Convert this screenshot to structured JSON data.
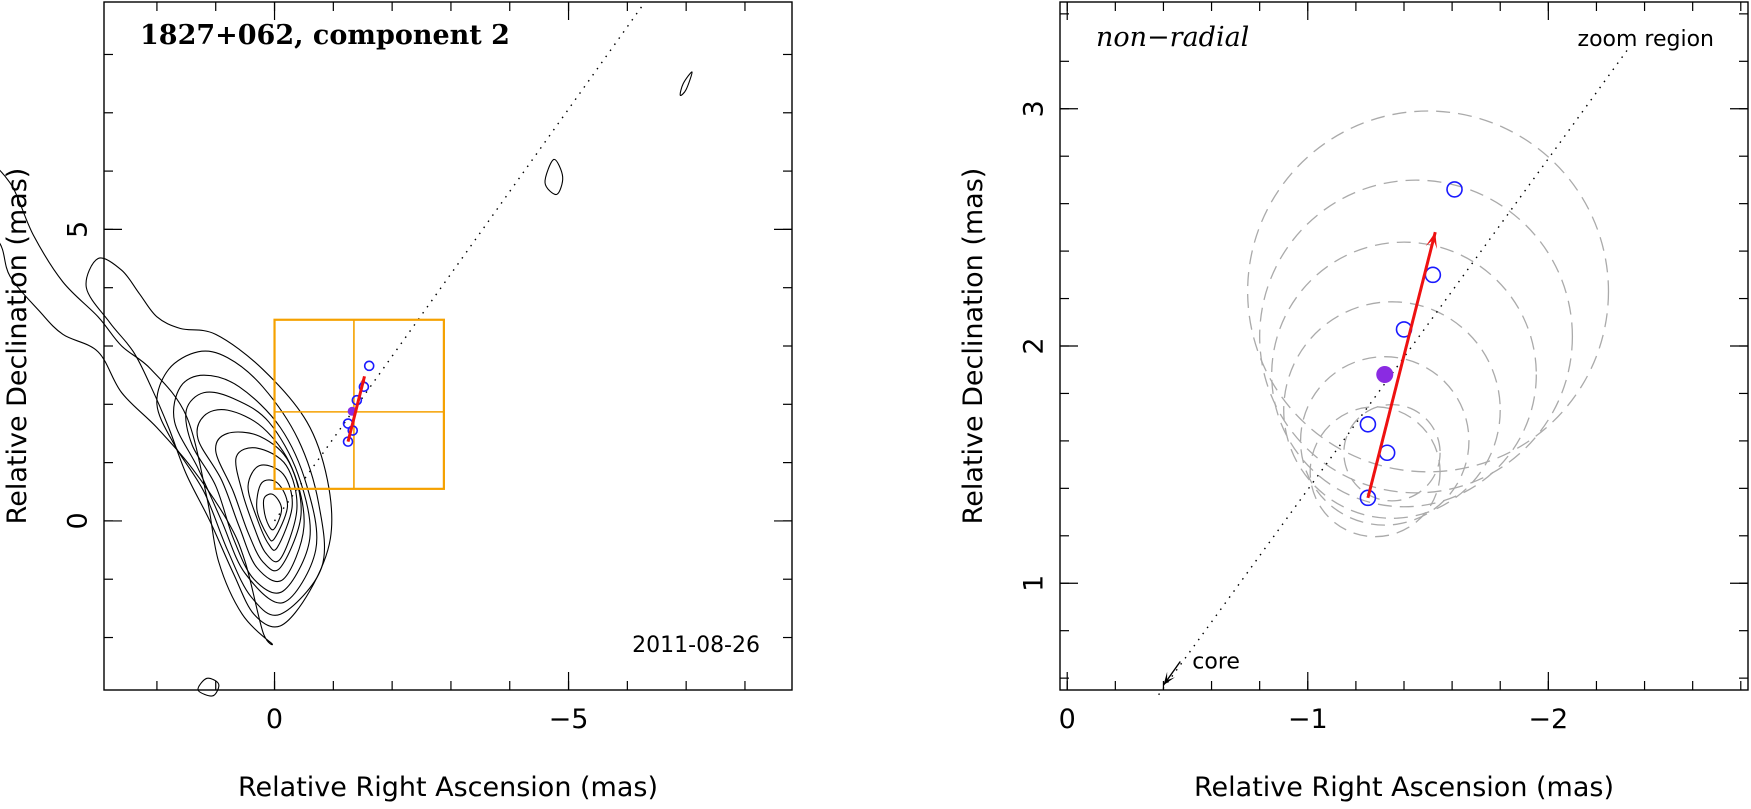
{
  "chart_data": [
    {
      "type": "scatter",
      "title": "1827+062, component 2",
      "date_label": "2011-08-26",
      "xlabel": "Relative Right Ascension (mas)",
      "ylabel": "Relative Declination (mas)",
      "xlim": [
        2.9,
        -8.8
      ],
      "ylim": [
        -2.9,
        8.9
      ],
      "x_ticks": [
        {
          "v": 0,
          "label": "0"
        },
        {
          "v": -5,
          "label": "−5"
        }
      ],
      "y_ticks": [
        {
          "v": 0,
          "label": "0"
        },
        {
          "v": 5,
          "label": "5"
        }
      ],
      "x_minor_step": 1,
      "y_minor_step": 1,
      "contours": [
        [
          [
            0.05,
            -2.1
          ],
          [
            0.55,
            -1.6
          ],
          [
            0.95,
            -0.7
          ],
          [
            1.15,
            0.4
          ],
          [
            1.5,
            1.8
          ],
          [
            2.1,
            2.6
          ],
          [
            2.6,
            3.0
          ],
          [
            3.0,
            3.5
          ],
          [
            3.6,
            4.1
          ],
          [
            4.1,
            4.9
          ],
          [
            4.5,
            5.8
          ],
          [
            5.0,
            6.2
          ],
          [
            5.4,
            5.7
          ],
          [
            5.3,
            5.2
          ],
          [
            4.7,
            4.8
          ],
          [
            4.5,
            4.2
          ],
          [
            4.0,
            3.6
          ],
          [
            3.6,
            3.2
          ],
          [
            3.0,
            2.9
          ],
          [
            2.6,
            2.2
          ],
          [
            2.0,
            1.6
          ],
          [
            1.4,
            0.9
          ],
          [
            0.8,
            0.0
          ],
          [
            0.5,
            -0.7
          ],
          [
            0.2,
            -1.9
          ]
        ],
        [
          [
            -0.1,
            -1.8
          ],
          [
            -0.6,
            -1.2
          ],
          [
            -0.95,
            -0.3
          ],
          [
            -0.9,
            0.7
          ],
          [
            -0.55,
            1.7
          ],
          [
            0.2,
            2.6
          ],
          [
            1.0,
            3.2
          ],
          [
            1.6,
            3.3
          ],
          [
            2.0,
            3.5
          ],
          [
            2.3,
            3.9
          ],
          [
            2.6,
            4.3
          ],
          [
            3.0,
            4.5
          ],
          [
            3.2,
            4.0
          ],
          [
            2.8,
            3.4
          ],
          [
            2.4,
            2.9
          ],
          [
            2.1,
            2.3
          ],
          [
            1.8,
            1.6
          ],
          [
            1.5,
            0.8
          ],
          [
            1.1,
            0.0
          ],
          [
            0.7,
            -0.9
          ],
          [
            0.35,
            -1.6
          ]
        ],
        [
          [
            -0.1,
            -1.6
          ],
          [
            -0.8,
            -0.8
          ],
          [
            -0.75,
            0.3
          ],
          [
            -0.4,
            1.4
          ],
          [
            0.2,
            2.3
          ],
          [
            0.8,
            2.8
          ],
          [
            1.3,
            2.9
          ],
          [
            1.8,
            2.6
          ],
          [
            2.0,
            2.0
          ],
          [
            1.7,
            1.3
          ],
          [
            1.2,
            0.5
          ],
          [
            0.8,
            -0.5
          ],
          [
            0.4,
            -1.3
          ]
        ],
        [
          [
            -0.15,
            -1.4
          ],
          [
            -0.7,
            -0.5
          ],
          [
            -0.55,
            0.6
          ],
          [
            -0.1,
            1.6
          ],
          [
            0.6,
            2.3
          ],
          [
            1.2,
            2.5
          ],
          [
            1.6,
            2.3
          ],
          [
            1.7,
            1.7
          ],
          [
            1.3,
            0.9
          ],
          [
            0.9,
            0.0
          ],
          [
            0.5,
            -0.9
          ]
        ],
        [
          [
            -0.15,
            -1.2
          ],
          [
            -0.6,
            -0.3
          ],
          [
            -0.4,
            0.8
          ],
          [
            0.1,
            1.7
          ],
          [
            0.7,
            2.1
          ],
          [
            1.2,
            2.2
          ],
          [
            1.5,
            1.9
          ],
          [
            1.4,
            1.3
          ],
          [
            1.0,
            0.6
          ],
          [
            0.7,
            -0.3
          ],
          [
            0.35,
            -1.0
          ]
        ],
        [
          [
            -0.15,
            -1.0
          ],
          [
            -0.5,
            -0.1
          ],
          [
            -0.3,
            0.9
          ],
          [
            0.2,
            1.6
          ],
          [
            0.8,
            1.9
          ],
          [
            1.2,
            1.8
          ],
          [
            1.3,
            1.4
          ],
          [
            0.9,
            0.7
          ],
          [
            0.6,
            -0.1
          ],
          [
            0.3,
            -0.8
          ]
        ],
        [
          [
            -0.1,
            -0.8
          ],
          [
            -0.45,
            0.1
          ],
          [
            -0.25,
            1.0
          ],
          [
            0.25,
            1.45
          ],
          [
            0.8,
            1.5
          ],
          [
            1.0,
            1.2
          ],
          [
            0.7,
            0.5
          ],
          [
            0.45,
            -0.2
          ],
          [
            0.2,
            -0.7
          ]
        ],
        [
          [
            -0.1,
            -0.65
          ],
          [
            -0.38,
            0.2
          ],
          [
            -0.2,
            0.95
          ],
          [
            0.3,
            1.25
          ],
          [
            0.65,
            1.1
          ],
          [
            0.55,
            0.5
          ],
          [
            0.35,
            -0.1
          ],
          [
            0.15,
            -0.55
          ]
        ],
        [
          [
            -0.05,
            -0.45
          ],
          [
            -0.3,
            0.25
          ],
          [
            -0.15,
            0.8
          ],
          [
            0.25,
            0.95
          ],
          [
            0.45,
            0.6
          ],
          [
            0.3,
            0.05
          ],
          [
            0.1,
            -0.4
          ]
        ],
        [
          [
            0.0,
            -0.3
          ],
          [
            -0.22,
            0.25
          ],
          [
            -0.05,
            0.65
          ],
          [
            0.22,
            0.65
          ],
          [
            0.3,
            0.2
          ],
          [
            0.12,
            -0.25
          ]
        ],
        [
          [
            0.02,
            -0.15
          ],
          [
            -0.12,
            0.2
          ],
          [
            0.02,
            0.45
          ],
          [
            0.18,
            0.38
          ],
          [
            0.15,
            0.05
          ]
        ],
        [
          [
            -4.6,
            5.8
          ],
          [
            -4.75,
            6.2
          ],
          [
            -4.9,
            5.9
          ],
          [
            -4.8,
            5.6
          ]
        ],
        [
          [
            -6.95,
            7.5
          ],
          [
            -7.1,
            7.7
          ],
          [
            -7.0,
            7.4
          ],
          [
            -6.9,
            7.3
          ]
        ],
        [
          [
            1.15,
            -2.7
          ],
          [
            0.95,
            -2.8
          ],
          [
            1.05,
            -3.0
          ],
          [
            1.3,
            -2.9
          ]
        ]
      ],
      "ridge": [
        [
          0,
          0
        ],
        [
          -6.3,
          8.9
        ]
      ],
      "box": {
        "x0": 0.0,
        "x1": -2.88,
        "y0": 0.55,
        "y1": 3.45,
        "xdiv": -1.35,
        "ydiv": 1.87
      },
      "points_hollow": [
        [
          -1.25,
          1.36
        ],
        [
          -1.33,
          1.55
        ],
        [
          -1.25,
          1.67
        ],
        [
          -1.4,
          2.07
        ],
        [
          -1.52,
          2.3
        ],
        [
          -1.61,
          2.66
        ]
      ],
      "point_filled": [
        -1.32,
        1.88
      ],
      "vector": [
        [
          -1.25,
          1.36
        ],
        [
          -1.53,
          2.48
        ]
      ]
    },
    {
      "type": "scatter",
      "title": "non−radial",
      "zoom_label": "zoom region",
      "core_label": "core",
      "xlabel": "Relative Right Ascension (mas)",
      "ylabel": "Relative Declination (mas)",
      "xlim": [
        0.03,
        -2.83
      ],
      "ylim": [
        0.55,
        3.45
      ],
      "x_ticks": [
        {
          "v": 0,
          "label": "0"
        },
        {
          "v": -1,
          "label": "−1"
        },
        {
          "v": -2,
          "label": "−2"
        }
      ],
      "y_ticks": [
        {
          "v": 1,
          "label": "1"
        },
        {
          "v": 2,
          "label": "2"
        },
        {
          "v": 3,
          "label": "3"
        }
      ],
      "x_minor_step": 0.2,
      "y_minor_step": 0.2,
      "ridge": [
        [
          -0.38,
          0.53
        ],
        [
          -2.33,
          3.25
        ]
      ],
      "core_arrow": [
        [
          -0.47,
          0.67
        ],
        [
          -0.4,
          0.57
        ]
      ],
      "dashed_circles": [
        {
          "x": -1.5,
          "y": 2.23,
          "r": 0.75
        },
        {
          "x": -1.45,
          "y": 2.04,
          "r": 0.65
        },
        {
          "x": -1.4,
          "y": 1.88,
          "r": 0.55
        },
        {
          "x": -1.35,
          "y": 1.73,
          "r": 0.45
        },
        {
          "x": -1.32,
          "y": 1.6,
          "r": 0.35
        },
        {
          "x": -1.28,
          "y": 1.47,
          "r": 0.27
        },
        {
          "x": -1.35,
          "y": 1.55,
          "r": 0.2
        }
      ],
      "points_hollow": [
        [
          -1.25,
          1.36
        ],
        [
          -1.33,
          1.55
        ],
        [
          -1.25,
          1.67
        ],
        [
          -1.4,
          2.07
        ],
        [
          -1.52,
          2.3
        ],
        [
          -1.61,
          2.66
        ]
      ],
      "point_filled": [
        -1.32,
        1.88
      ],
      "vector": [
        [
          -1.25,
          1.36
        ],
        [
          -1.53,
          2.48
        ]
      ]
    }
  ]
}
